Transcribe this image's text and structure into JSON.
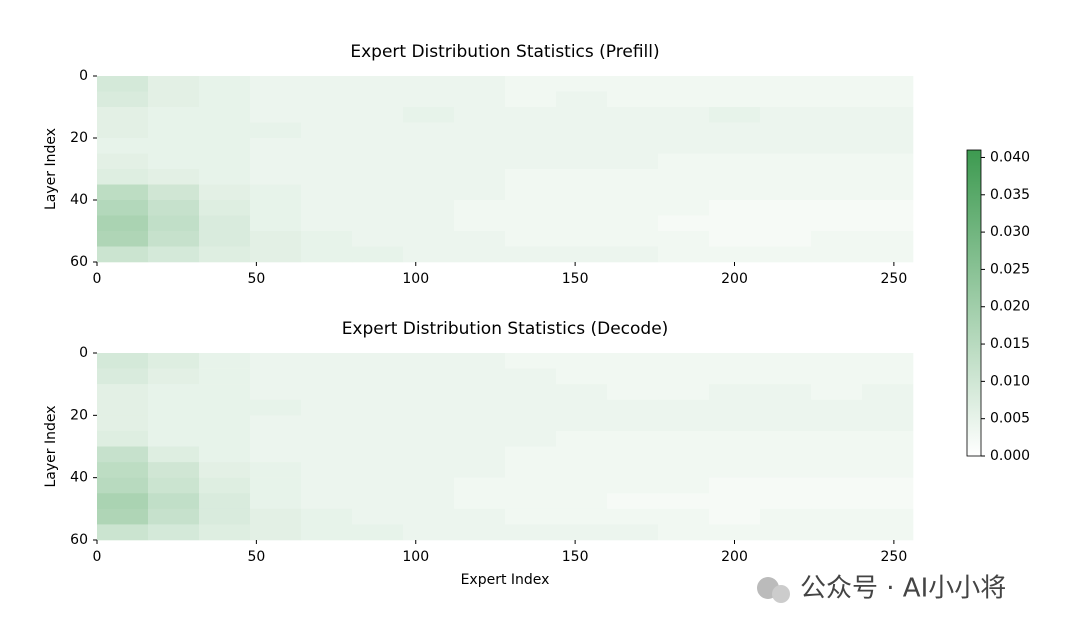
{
  "chart_data": [
    {
      "type": "heatmap",
      "title": "Expert Distribution Statistics (Prefill)",
      "ylabel": "Layer Index",
      "xlim": [
        0,
        256
      ],
      "ylim": [
        0,
        60
      ],
      "xticks": [
        0,
        50,
        100,
        150,
        200,
        250
      ],
      "yticks": [
        0,
        20,
        40,
        60
      ],
      "x_bins": [
        0,
        16,
        32,
        48,
        64,
        80,
        96,
        112,
        128,
        144,
        160,
        176,
        192,
        208,
        224,
        240,
        256
      ],
      "y_bins": [
        0,
        5,
        10,
        15,
        20,
        25,
        30,
        35,
        40,
        45,
        50,
        55,
        60
      ],
      "colormap": [
        "#ffffff",
        "#3d9a50"
      ],
      "clim": [
        0,
        0.041
      ],
      "cticks": [
        {
          "value": 0,
          "label": "0.000"
        },
        {
          "value": 0.005,
          "label": "0.005"
        },
        {
          "value": 0.01,
          "label": "0.010"
        },
        {
          "value": 0.015,
          "label": "0.015"
        },
        {
          "value": 0.02,
          "label": "0.020"
        },
        {
          "value": 0.025,
          "label": "0.025"
        },
        {
          "value": 0.03,
          "label": "0.030"
        },
        {
          "value": 0.035,
          "label": "0.035"
        },
        {
          "value": 0.04,
          "label": "0.040"
        }
      ],
      "values": [
        [
          0.009,
          0.006,
          0.005,
          0.004,
          0.004,
          0.004,
          0.004,
          0.004,
          0.003,
          0.003,
          0.003,
          0.003,
          0.003,
          0.003,
          0.003,
          0.003
        ],
        [
          0.008,
          0.006,
          0.005,
          0.004,
          0.004,
          0.004,
          0.004,
          0.004,
          0.003,
          0.004,
          0.003,
          0.003,
          0.003,
          0.003,
          0.003,
          0.003
        ],
        [
          0.006,
          0.005,
          0.005,
          0.004,
          0.004,
          0.004,
          0.005,
          0.004,
          0.004,
          0.004,
          0.004,
          0.004,
          0.005,
          0.004,
          0.004,
          0.004
        ],
        [
          0.006,
          0.005,
          0.005,
          0.005,
          0.004,
          0.004,
          0.004,
          0.004,
          0.004,
          0.004,
          0.004,
          0.004,
          0.004,
          0.004,
          0.004,
          0.004
        ],
        [
          0.005,
          0.005,
          0.005,
          0.004,
          0.004,
          0.004,
          0.004,
          0.004,
          0.004,
          0.004,
          0.004,
          0.004,
          0.004,
          0.004,
          0.004,
          0.004
        ],
        [
          0.006,
          0.005,
          0.005,
          0.004,
          0.004,
          0.004,
          0.004,
          0.004,
          0.004,
          0.004,
          0.004,
          0.003,
          0.003,
          0.003,
          0.003,
          0.003
        ],
        [
          0.007,
          0.006,
          0.005,
          0.004,
          0.004,
          0.004,
          0.004,
          0.004,
          0.003,
          0.003,
          0.003,
          0.003,
          0.003,
          0.003,
          0.003,
          0.003
        ],
        [
          0.014,
          0.01,
          0.006,
          0.005,
          0.004,
          0.004,
          0.004,
          0.004,
          0.003,
          0.003,
          0.003,
          0.003,
          0.003,
          0.003,
          0.003,
          0.003
        ],
        [
          0.016,
          0.012,
          0.007,
          0.005,
          0.004,
          0.004,
          0.004,
          0.003,
          0.003,
          0.003,
          0.003,
          0.003,
          0.002,
          0.002,
          0.002,
          0.002
        ],
        [
          0.018,
          0.013,
          0.008,
          0.005,
          0.004,
          0.004,
          0.004,
          0.003,
          0.003,
          0.003,
          0.003,
          0.002,
          0.002,
          0.002,
          0.002,
          0.002
        ],
        [
          0.017,
          0.012,
          0.008,
          0.006,
          0.005,
          0.004,
          0.004,
          0.004,
          0.003,
          0.003,
          0.003,
          0.003,
          0.002,
          0.002,
          0.003,
          0.003
        ],
        [
          0.011,
          0.009,
          0.007,
          0.006,
          0.005,
          0.005,
          0.004,
          0.004,
          0.004,
          0.004,
          0.004,
          0.003,
          0.003,
          0.003,
          0.003,
          0.003
        ]
      ]
    },
    {
      "type": "heatmap",
      "title": "Expert Distribution Statistics (Decode)",
      "ylabel": "Layer Index",
      "xlabel": "Expert Index",
      "xlim": [
        0,
        256
      ],
      "ylim": [
        0,
        60
      ],
      "xticks": [
        0,
        50,
        100,
        150,
        200,
        250
      ],
      "yticks": [
        0,
        20,
        40,
        60
      ],
      "x_bins": [
        0,
        16,
        32,
        48,
        64,
        80,
        96,
        112,
        128,
        144,
        160,
        176,
        192,
        208,
        224,
        240,
        256
      ],
      "y_bins": [
        0,
        5,
        10,
        15,
        20,
        25,
        30,
        35,
        40,
        45,
        50,
        55,
        60
      ],
      "values": [
        [
          0.009,
          0.007,
          0.005,
          0.004,
          0.004,
          0.004,
          0.004,
          0.004,
          0.003,
          0.003,
          0.003,
          0.003,
          0.003,
          0.003,
          0.003,
          0.003
        ],
        [
          0.008,
          0.006,
          0.005,
          0.004,
          0.004,
          0.004,
          0.004,
          0.004,
          0.004,
          0.003,
          0.003,
          0.003,
          0.003,
          0.003,
          0.003,
          0.003
        ],
        [
          0.006,
          0.005,
          0.005,
          0.004,
          0.004,
          0.004,
          0.004,
          0.004,
          0.004,
          0.004,
          0.003,
          0.003,
          0.004,
          0.004,
          0.003,
          0.004
        ],
        [
          0.006,
          0.005,
          0.005,
          0.005,
          0.004,
          0.004,
          0.004,
          0.004,
          0.004,
          0.004,
          0.004,
          0.004,
          0.004,
          0.004,
          0.004,
          0.004
        ],
        [
          0.006,
          0.005,
          0.005,
          0.004,
          0.004,
          0.004,
          0.004,
          0.004,
          0.004,
          0.004,
          0.004,
          0.004,
          0.004,
          0.004,
          0.004,
          0.004
        ],
        [
          0.007,
          0.005,
          0.005,
          0.004,
          0.004,
          0.004,
          0.004,
          0.004,
          0.004,
          0.003,
          0.003,
          0.003,
          0.003,
          0.003,
          0.003,
          0.003
        ],
        [
          0.012,
          0.007,
          0.005,
          0.004,
          0.004,
          0.004,
          0.004,
          0.004,
          0.003,
          0.003,
          0.003,
          0.003,
          0.003,
          0.003,
          0.003,
          0.003
        ],
        [
          0.014,
          0.01,
          0.006,
          0.005,
          0.004,
          0.004,
          0.004,
          0.004,
          0.003,
          0.003,
          0.003,
          0.003,
          0.003,
          0.003,
          0.003,
          0.003
        ],
        [
          0.015,
          0.011,
          0.007,
          0.005,
          0.004,
          0.004,
          0.004,
          0.003,
          0.003,
          0.003,
          0.003,
          0.003,
          0.002,
          0.002,
          0.002,
          0.002
        ],
        [
          0.018,
          0.013,
          0.008,
          0.005,
          0.004,
          0.004,
          0.004,
          0.003,
          0.003,
          0.003,
          0.002,
          0.002,
          0.002,
          0.002,
          0.002,
          0.002
        ],
        [
          0.017,
          0.012,
          0.008,
          0.006,
          0.005,
          0.004,
          0.004,
          0.004,
          0.003,
          0.003,
          0.003,
          0.003,
          0.002,
          0.003,
          0.003,
          0.003
        ],
        [
          0.011,
          0.009,
          0.007,
          0.006,
          0.005,
          0.005,
          0.004,
          0.004,
          0.004,
          0.004,
          0.004,
          0.003,
          0.003,
          0.003,
          0.003,
          0.003
        ]
      ]
    }
  ],
  "watermark": "公众号 · AI小小将"
}
